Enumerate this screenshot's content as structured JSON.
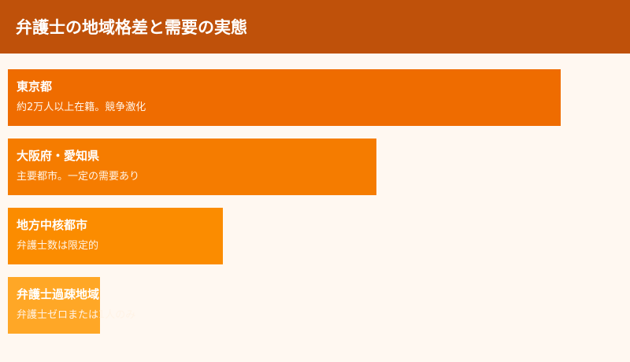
{
  "header": {
    "title": "弁護士の地域格差と需要の実態"
  },
  "bars": [
    {
      "title": "東京都",
      "desc": "約2万人以上在籍。競争激化",
      "percent": 90,
      "color": "#ef6c00"
    },
    {
      "title": "大阪府・愛知県",
      "desc": "主要都市。一定の需要あり",
      "percent": 60,
      "color": "#f57c00"
    },
    {
      "title": "地方中核都市",
      "desc": "弁護士数は限定的",
      "percent": 35,
      "color": "#fb8c00"
    },
    {
      "title": "弁護士過疎地域",
      "desc": "弁護士ゼロまたは1人のみ",
      "percent": 15,
      "color": "#ffa726"
    }
  ]
}
